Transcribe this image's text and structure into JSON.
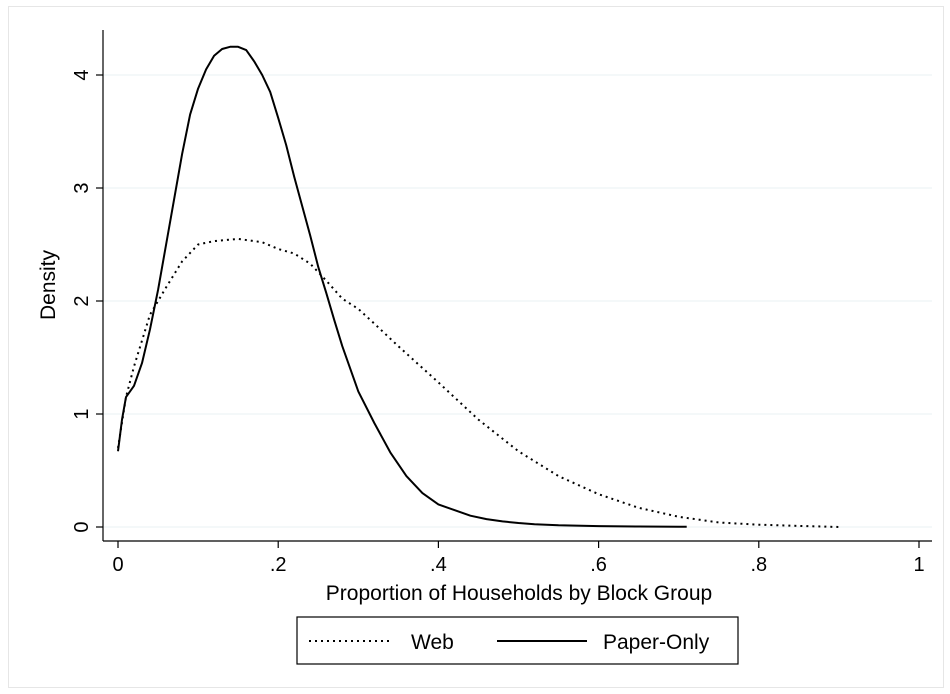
{
  "chart_data": {
    "type": "line",
    "title": "",
    "xlabel": "Proportion of Households by Block Group",
    "ylabel": "Density",
    "xlim": [
      0,
      1
    ],
    "ylim": [
      0,
      4.25
    ],
    "x_ticks": [
      0,
      0.2,
      0.4,
      0.6,
      0.8,
      1
    ],
    "x_tick_labels": [
      "0",
      ".2",
      ".4",
      ".6",
      ".8",
      "1"
    ],
    "y_ticks": [
      0,
      1,
      2,
      3,
      4
    ],
    "y_tick_labels": [
      "0",
      "1",
      "2",
      "3",
      "4"
    ],
    "grid": true,
    "legend_position": "bottom",
    "series": [
      {
        "name": "Web",
        "style": "dotted",
        "x": [
          0,
          0.01,
          0.02,
          0.04,
          0.06,
          0.08,
          0.1,
          0.12,
          0.15,
          0.18,
          0.2,
          0.22,
          0.24,
          0.26,
          0.28,
          0.3,
          0.32,
          0.35,
          0.4,
          0.45,
          0.5,
          0.55,
          0.6,
          0.65,
          0.7,
          0.75,
          0.8,
          0.85,
          0.9
        ],
        "y": [
          0.7,
          1.15,
          1.42,
          1.88,
          2.12,
          2.35,
          2.5,
          2.53,
          2.55,
          2.52,
          2.46,
          2.42,
          2.33,
          2.18,
          2.02,
          1.93,
          1.8,
          1.6,
          1.28,
          0.95,
          0.67,
          0.45,
          0.29,
          0.17,
          0.09,
          0.04,
          0.02,
          0.01,
          0.0
        ]
      },
      {
        "name": "Paper-Only",
        "style": "solid",
        "x": [
          0,
          0.005,
          0.01,
          0.02,
          0.03,
          0.04,
          0.05,
          0.06,
          0.07,
          0.08,
          0.09,
          0.1,
          0.11,
          0.12,
          0.13,
          0.14,
          0.15,
          0.16,
          0.17,
          0.18,
          0.19,
          0.2,
          0.21,
          0.22,
          0.23,
          0.24,
          0.25,
          0.26,
          0.27,
          0.28,
          0.29,
          0.3,
          0.32,
          0.34,
          0.36,
          0.38,
          0.4,
          0.42,
          0.44,
          0.46,
          0.48,
          0.5,
          0.52,
          0.55,
          0.6,
          0.65,
          0.7,
          0.71
        ],
        "y": [
          0.67,
          0.95,
          1.15,
          1.25,
          1.45,
          1.75,
          2.1,
          2.5,
          2.9,
          3.3,
          3.65,
          3.88,
          4.05,
          4.17,
          4.23,
          4.25,
          4.25,
          4.22,
          4.12,
          4.0,
          3.85,
          3.62,
          3.38,
          3.1,
          2.84,
          2.58,
          2.3,
          2.07,
          1.83,
          1.6,
          1.4,
          1.2,
          0.92,
          0.66,
          0.45,
          0.3,
          0.2,
          0.15,
          0.1,
          0.07,
          0.05,
          0.035,
          0.025,
          0.015,
          0.008,
          0.004,
          0.002,
          0.002
        ]
      }
    ]
  }
}
